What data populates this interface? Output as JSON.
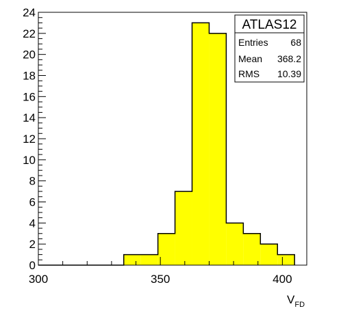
{
  "chart_data": {
    "type": "bar",
    "histogram": true,
    "bin_edges": [
      300,
      307,
      314,
      321,
      328,
      335,
      342,
      349,
      356,
      363,
      370,
      377,
      384,
      391,
      398,
      405
    ],
    "values": [
      0,
      0,
      0,
      0,
      0,
      1,
      1,
      3,
      7,
      23,
      22,
      4,
      3,
      2,
      1
    ],
    "fill_color": "#ffff00",
    "line_color": "#000000",
    "xlim": [
      300,
      410
    ],
    "ylim": [
      0,
      24
    ],
    "x_ticks": [
      "300",
      "350",
      "400"
    ],
    "y_ticks": [
      "0",
      "2",
      "4",
      "6",
      "8",
      "10",
      "12",
      "14",
      "16",
      "18",
      "20",
      "22",
      "24"
    ],
    "xlabel": "V",
    "xlabel_subscript": "FD",
    "ylabel": "",
    "grid": false
  },
  "stats_box": {
    "title": "ATLAS12",
    "rows": [
      {
        "label": "Entries",
        "value": "68"
      },
      {
        "label": "Mean",
        "value": "368.2"
      },
      {
        "label": "RMS",
        "value": "10.39"
      }
    ]
  }
}
